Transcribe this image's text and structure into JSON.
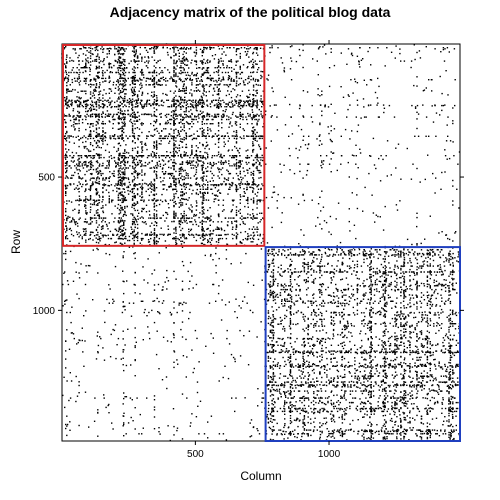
{
  "chart_data": {
    "type": "heatmap",
    "title": "Adjacency matrix of the political blog data",
    "xlabel": "Column",
    "ylabel": "Row",
    "xlim": [
      1,
      1490
    ],
    "ylim": [
      1,
      1490
    ],
    "y_reversed": true,
    "x_ticks": [
      500,
      1000
    ],
    "x_tick_labels": [
      "500",
      "1000"
    ],
    "y_ticks": [
      500,
      1000
    ],
    "y_tick_labels": [
      "500",
      "1000"
    ],
    "blocks": [
      {
        "rows": [
          1,
          758
        ],
        "cols": [
          1,
          758
        ],
        "outline_color": "#d62728",
        "density": "high"
      },
      {
        "rows": [
          759,
          1490
        ],
        "cols": [
          759,
          1490
        ],
        "outline_color": "#1f3fbf",
        "density": "high"
      },
      {
        "rows": [
          1,
          758
        ],
        "cols": [
          759,
          1490
        ],
        "density": "low"
      },
      {
        "rows": [
          759,
          1490
        ],
        "cols": [
          1,
          758
        ],
        "density": "low"
      }
    ],
    "point_color": "#000000"
  }
}
